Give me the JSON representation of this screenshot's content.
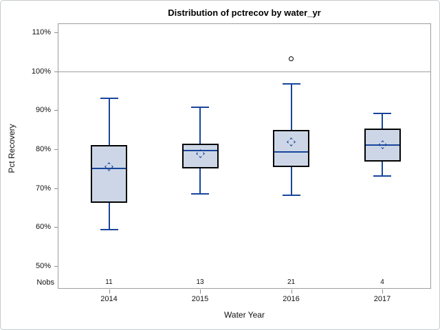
{
  "window": {
    "background": "#ffffff",
    "frame_border_color": "#c6cacd"
  },
  "chart_data": {
    "type": "boxplot",
    "title": "Distribution of pctrecov by water_yr",
    "xlabel": "Water Year",
    "ylabel": "Pct Recovery",
    "legend": "none",
    "grid": "off",
    "ylim": [
      50,
      110
    ],
    "y_tick_labels": [
      "110%",
      "100%",
      "90%",
      "80%",
      "70%",
      "60%",
      "50%"
    ],
    "y_tick_values": [
      110,
      100,
      90,
      80,
      70,
      60,
      50
    ],
    "reference_line_value": 100,
    "categories": [
      "2014",
      "2015",
      "2016",
      "2017"
    ],
    "nobs": {
      "label": "Nobs",
      "values": [
        "11",
        "13",
        "21",
        "4"
      ]
    },
    "series": [
      {
        "category": "2014",
        "whisker_low": 59.4,
        "q1": 66.2,
        "median": 75.0,
        "q3": 81.1,
        "whisker_high": 93.1,
        "mean": 75.5,
        "outliers": []
      },
      {
        "category": "2015",
        "whisker_low": 68.5,
        "q1": 75.0,
        "median": 79.6,
        "q3": 81.5,
        "whisker_high": 90.7,
        "mean": 78.8,
        "outliers": []
      },
      {
        "category": "2016",
        "whisker_low": 68.1,
        "q1": 75.4,
        "median": 79.3,
        "q3": 84.9,
        "whisker_high": 96.8,
        "mean": 81.8,
        "outliers": [
          103.2
        ]
      },
      {
        "category": "2017",
        "whisker_low": 73.2,
        "q1": 76.8,
        "median": 81.0,
        "q3": 85.3,
        "whisker_high": 89.2,
        "mean": 81.2,
        "outliers": []
      }
    ],
    "colors": {
      "box_fill": "#ccd6e6",
      "box_border": "#000000",
      "whisker_median_mean_line": "#17449b",
      "reference_line": "#9d9d9d",
      "plot_border": "#9d9d9d",
      "tick_mark": "#8a8a8a",
      "text": "#000000"
    }
  }
}
